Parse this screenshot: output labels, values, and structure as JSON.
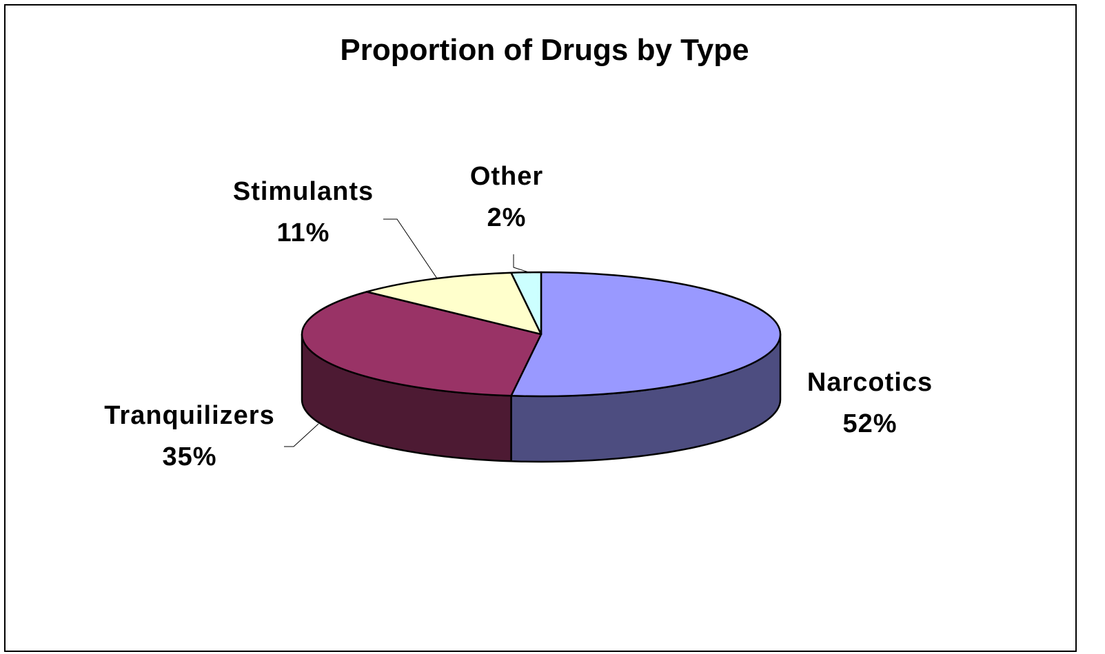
{
  "chart_data": {
    "type": "pie",
    "style": "3d",
    "title": "Proportion of Drugs by Type",
    "categories": [
      "Narcotics",
      "Tranquilizers",
      "Stimulants",
      "Other"
    ],
    "values": [
      52,
      35,
      11,
      2
    ],
    "value_labels": [
      "52%",
      "35%",
      "11%",
      "2%"
    ],
    "colors": {
      "top": [
        "#9999ff",
        "#993366",
        "#ffffcc",
        "#ccffff"
      ],
      "side": [
        "#4d4d80",
        "#4d1a33",
        "#80806a",
        "#668080"
      ]
    },
    "start_angle": "12 o'clock",
    "direction": "clockwise",
    "legend": "none",
    "data_labels": "outside"
  }
}
